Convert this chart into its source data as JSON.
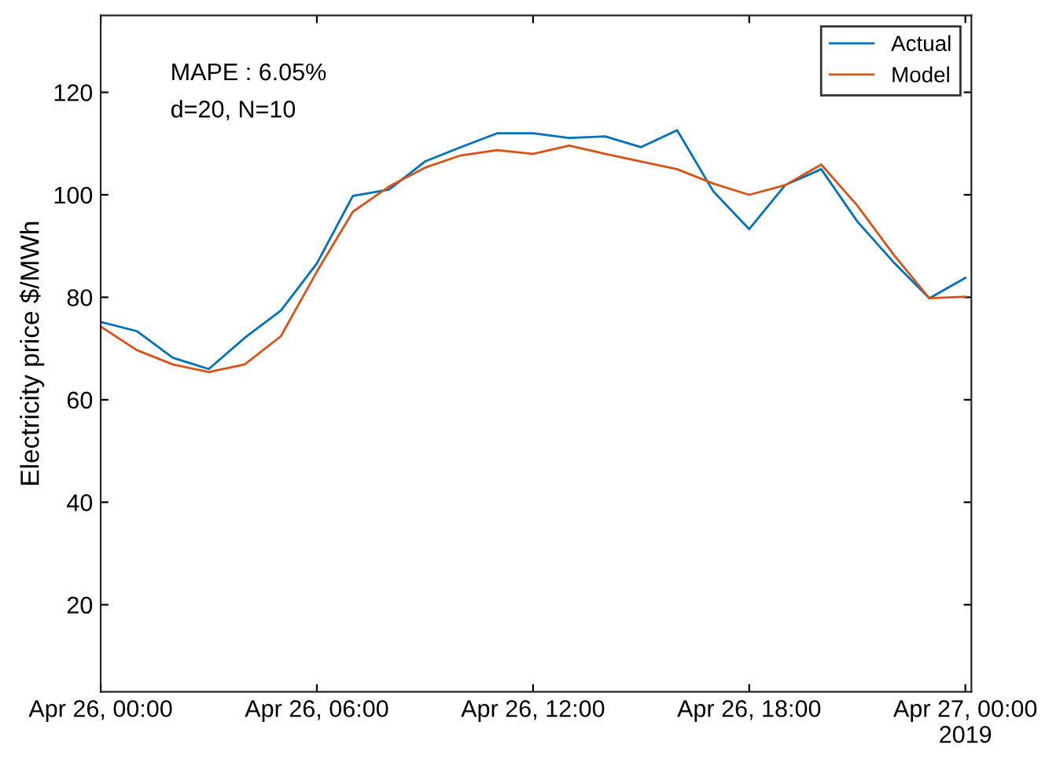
{
  "chart_data": {
    "type": "line",
    "ylabel": "Electricity price $/MWh",
    "annotations": [
      "MAPE : 6.05%",
      "d=20, N=10"
    ],
    "x": [
      "2019-04-26T00:00",
      "2019-04-26T01:00",
      "2019-04-26T02:00",
      "2019-04-26T03:00",
      "2019-04-26T04:00",
      "2019-04-26T05:00",
      "2019-04-26T06:00",
      "2019-04-26T07:00",
      "2019-04-26T08:00",
      "2019-04-26T09:00",
      "2019-04-26T10:00",
      "2019-04-26T11:00",
      "2019-04-26T12:00",
      "2019-04-26T13:00",
      "2019-04-26T14:00",
      "2019-04-26T15:00",
      "2019-04-26T16:00",
      "2019-04-26T17:00",
      "2019-04-26T18:00",
      "2019-04-26T19:00",
      "2019-04-26T20:00",
      "2019-04-26T21:00",
      "2019-04-26T22:00",
      "2019-04-26T23:00",
      "2019-04-27T00:00"
    ],
    "series": [
      {
        "name": "Actual",
        "color": "#0072bd",
        "values": [
          75.2,
          73.4,
          68.2,
          66,
          72.1,
          77.4,
          86.6,
          99.8,
          101,
          106.5,
          109.3,
          112,
          112,
          111.1,
          111.4,
          109.3,
          112.6,
          100.7,
          93.3,
          101.9,
          105,
          94.8,
          86.9,
          79.8,
          83.8
        ]
      },
      {
        "name": "Model",
        "color": "#d95319",
        "values": [
          74.3,
          69.7,
          66.9,
          65.4,
          66.9,
          72.4,
          85,
          96.7,
          101.6,
          105.3,
          107.7,
          108.7,
          108,
          109.6,
          108,
          106.5,
          105,
          102.2,
          100,
          101.9,
          105.9,
          97.9,
          88.4,
          79.8,
          80.1
        ]
      }
    ],
    "xlim": [
      "2019-04-26T00:00",
      "2019-04-27T00:10"
    ],
    "xticks": [
      {
        "value": "2019-04-26T00:00",
        "label": "Apr 26, 00:00"
      },
      {
        "value": "2019-04-26T06:00",
        "label": "Apr 26, 06:00"
      },
      {
        "value": "2019-04-26T12:00",
        "label": "Apr 26, 12:00"
      },
      {
        "value": "2019-04-26T18:00",
        "label": "Apr 26, 18:00"
      },
      {
        "value": "2019-04-27T00:00",
        "label": "Apr 27, 00:00\n2019"
      }
    ],
    "ylim": [
      3,
      135
    ],
    "yticks": [
      20,
      40,
      60,
      80,
      100,
      120
    ],
    "grid": false,
    "legend": "top right",
    "line_style": "solid",
    "marker": "none"
  }
}
